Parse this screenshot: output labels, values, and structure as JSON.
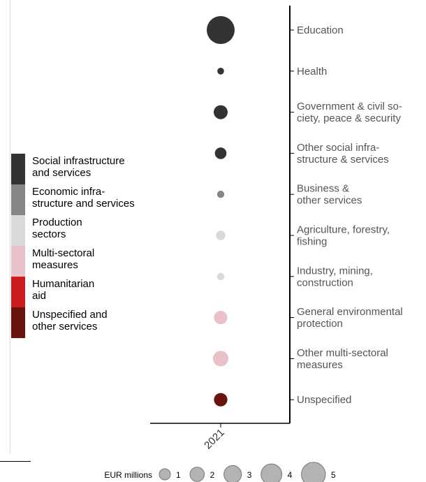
{
  "chart_data": {
    "type": "scatter",
    "x_categories": [
      "2021"
    ],
    "categories": [
      "Education",
      "Health",
      "Government & civil so-\nciety, peace & security",
      "Other social infra-\nstructure & services",
      "Business &\nother services",
      "Agriculture, forestry,\nfishing",
      "Industry, mining,\nconstruction",
      "General environmental\nprotection",
      "Other multi-sectoral\nmeasures",
      "Unspecified"
    ],
    "points": [
      {
        "x": "2021",
        "y": "Education",
        "value": 5.2,
        "group": "Social infrastructure and services"
      },
      {
        "x": "2021",
        "y": "Health",
        "value": 0.3,
        "group": "Social infrastructure and services"
      },
      {
        "x": "2021",
        "y": "Government & civil society, peace & security",
        "value": 1.3,
        "group": "Social infrastructure and services"
      },
      {
        "x": "2021",
        "y": "Other social infrastructure & services",
        "value": 0.9,
        "group": "Social infrastructure and services"
      },
      {
        "x": "2021",
        "y": "Business & other services",
        "value": 0.35,
        "group": "Economic infrastructure and services"
      },
      {
        "x": "2021",
        "y": "Agriculture, forestry, fishing",
        "value": 0.6,
        "group": "Production sectors"
      },
      {
        "x": "2021",
        "y": "Industry, mining, construction",
        "value": 0.35,
        "group": "Production sectors"
      },
      {
        "x": "2021",
        "y": "General environmental protection",
        "value": 1.2,
        "group": "Multi-sectoral measures"
      },
      {
        "x": "2021",
        "y": "Other multi-sectoral measures",
        "value": 1.6,
        "group": "Multi-sectoral measures"
      },
      {
        "x": "2021",
        "y": "Unspecified",
        "value": 1.2,
        "group": "Unspecified and other services"
      }
    ],
    "legend_groups": [
      {
        "name": "Social infrastructure\nand services",
        "color": "#333333"
      },
      {
        "name": "Economic infra-\nstructure and services",
        "color": "#858585"
      },
      {
        "name": "Production\nsectors",
        "color": "#d9d9d9"
      },
      {
        "name": "Multi-sectoral\nmeasures",
        "color": "#eac1c8"
      },
      {
        "name": "Humanitarian\naid",
        "color": "#cc1c1f"
      },
      {
        "name": "Unspecified and\nother services",
        "color": "#6a1410"
      }
    ],
    "size_legend": {
      "title": "EUR millions",
      "values": [
        1,
        2,
        3,
        4,
        5
      ],
      "color": "#b3b3b3"
    },
    "grid": false,
    "legend_placement": "left"
  }
}
